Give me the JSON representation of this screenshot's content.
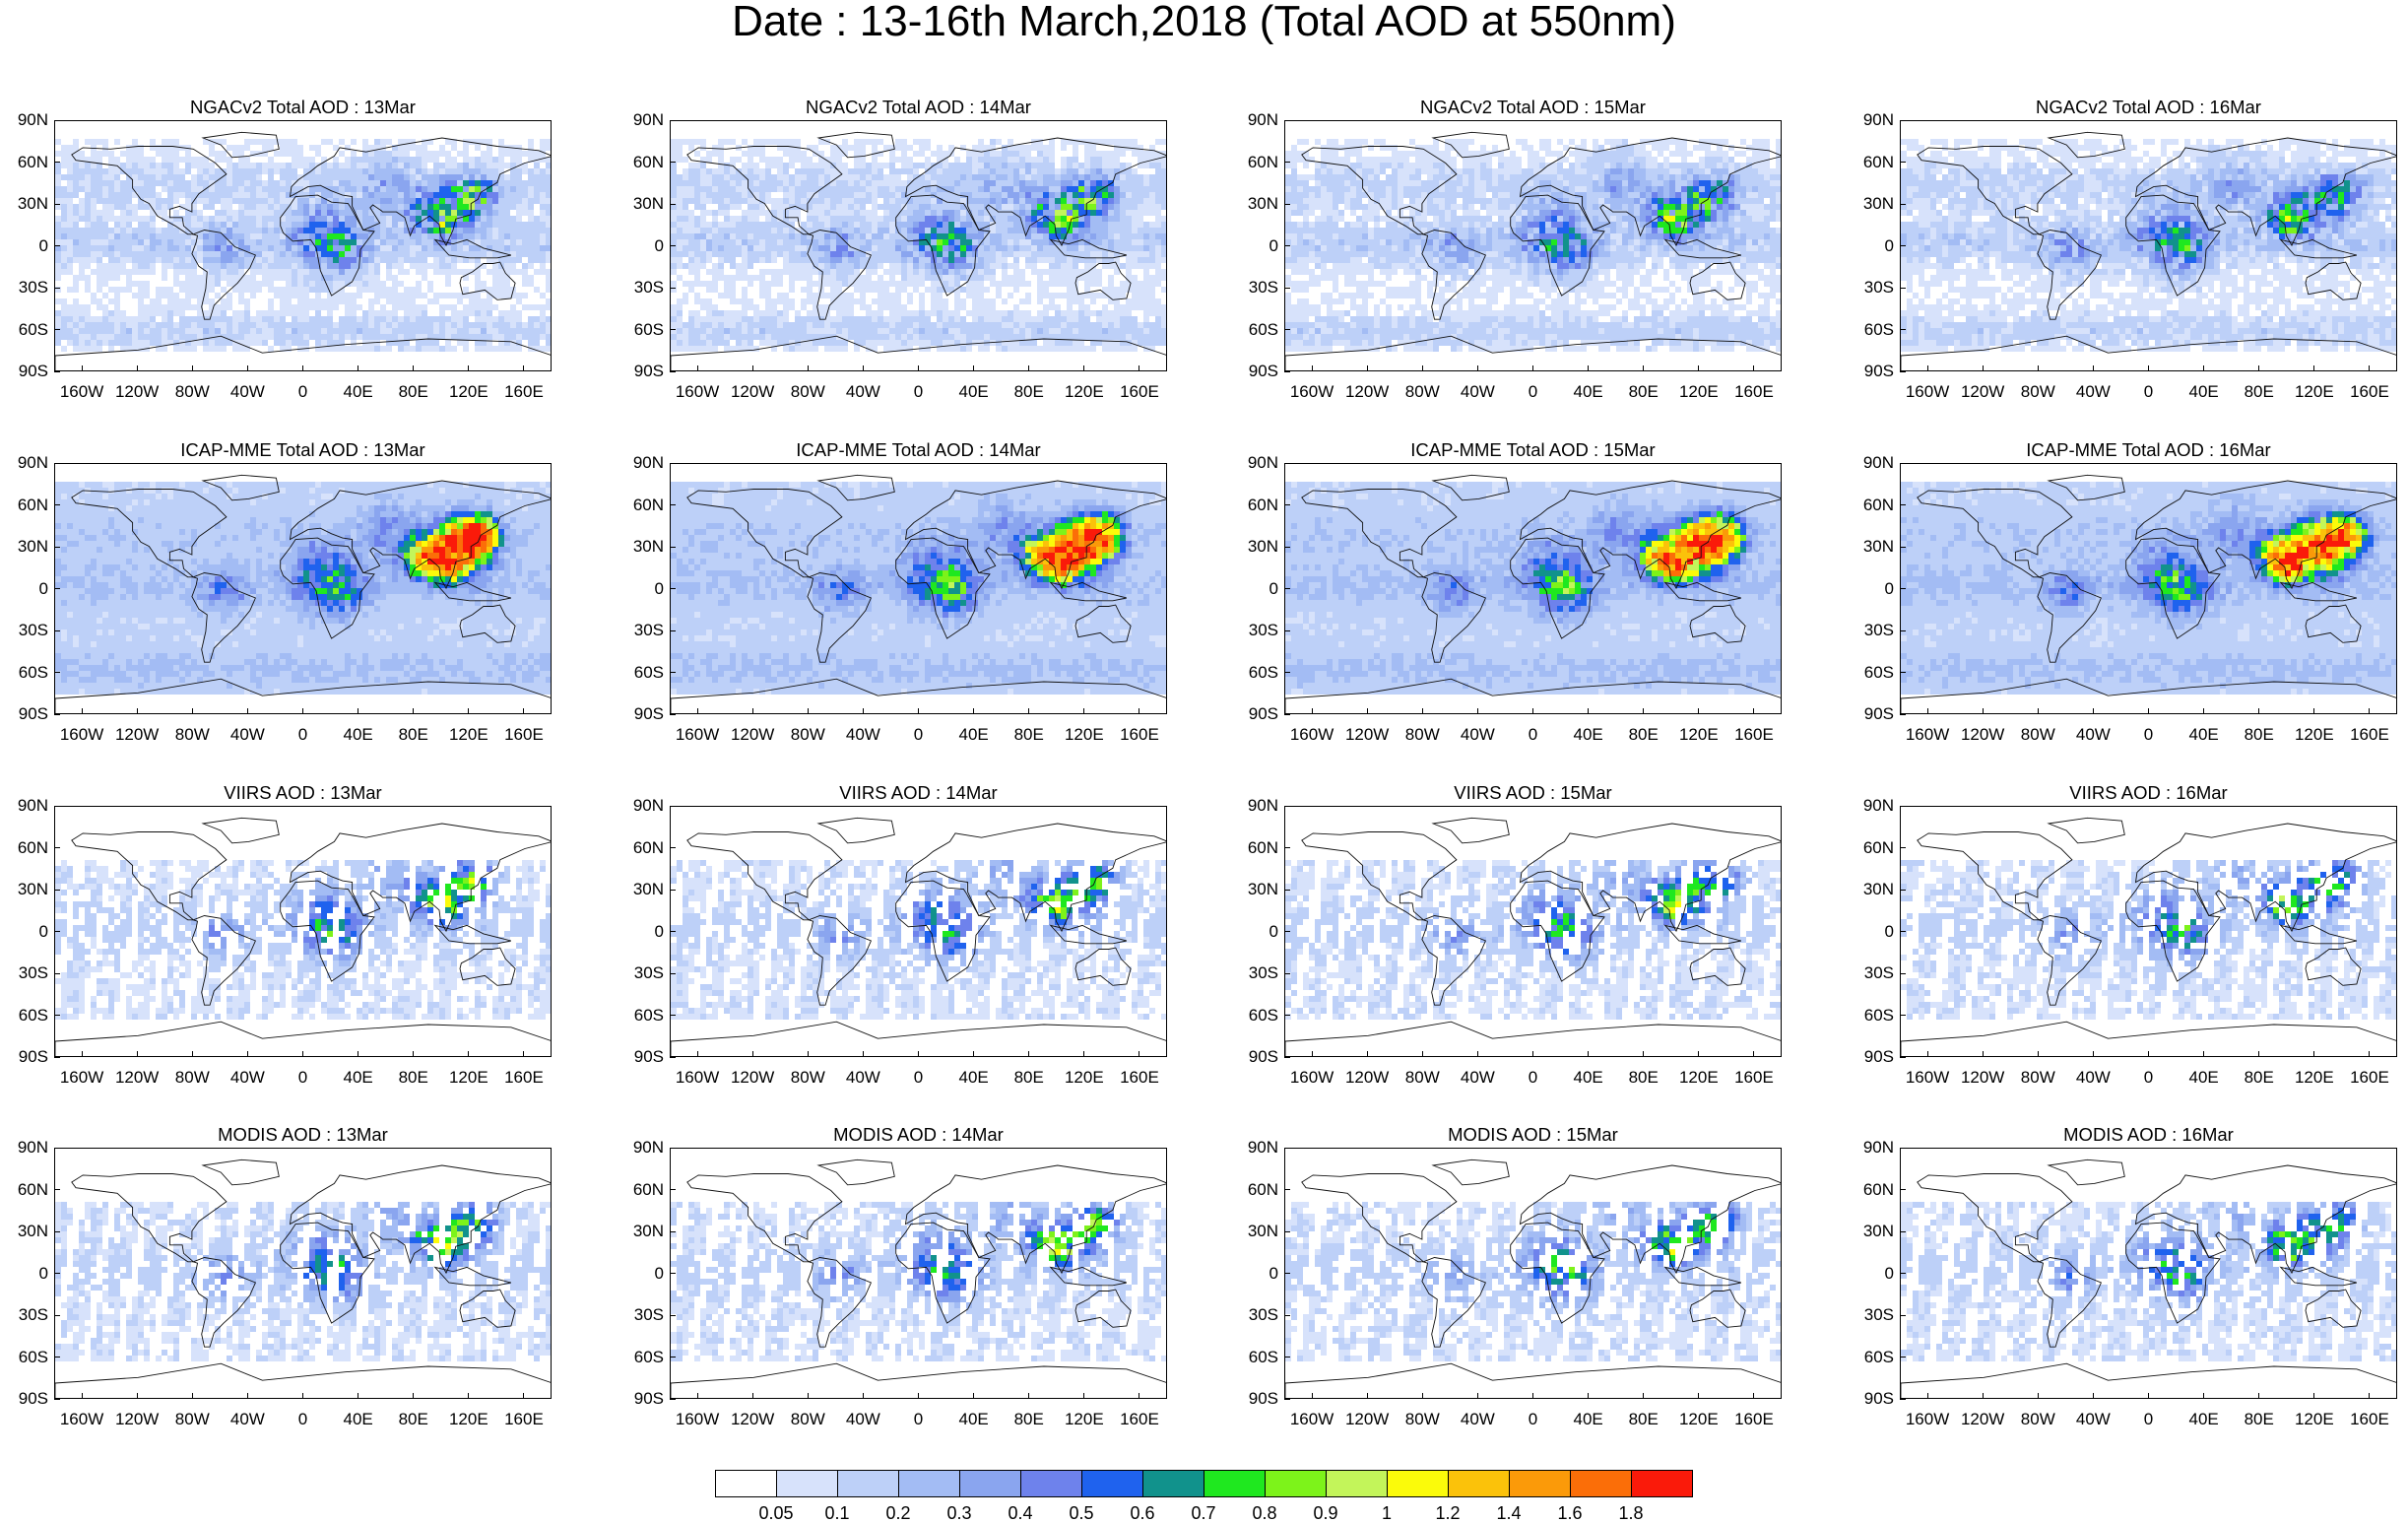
{
  "title": "Date : 13-16th March,2018 (Total AOD at 550nm)",
  "chart_data": {
    "type": "heatmap",
    "title": "Date : 13-16th March,2018 (Total AOD at 550nm)",
    "grid": false,
    "legend_placement": "bottom",
    "lat_ticks": [
      "90N",
      "60N",
      "30N",
      "0",
      "30S",
      "60S",
      "90S"
    ],
    "lon_ticks": [
      "160W",
      "120W",
      "80W",
      "40W",
      "0",
      "40E",
      "80E",
      "120E",
      "160E"
    ],
    "lon_range": [
      -180,
      180
    ],
    "lat_range": [
      -90,
      90
    ],
    "colorbar": {
      "levels": [
        "0.05",
        "0.1",
        "0.2",
        "0.3",
        "0.4",
        "0.5",
        "0.6",
        "0.7",
        "0.8",
        "0.9",
        "1",
        "1.2",
        "1.4",
        "1.6",
        "1.8"
      ],
      "colors": [
        "#ffffff",
        "#d7e2fb",
        "#bdd0f8",
        "#a3bcf4",
        "#8aa5ef",
        "#6e82ec",
        "#1f62ee",
        "#11928c",
        "#1fe81f",
        "#7df31a",
        "#c3f55a",
        "#fbfb0a",
        "#fbc20a",
        "#fb9a09",
        "#fb6e08",
        "#fa1a0a"
      ]
    },
    "panels": [
      {
        "title": "NGACv2 Total AOD : 13Mar",
        "model": "ngac",
        "day": 13
      },
      {
        "title": "NGACv2 Total AOD : 14Mar",
        "model": "ngac",
        "day": 14
      },
      {
        "title": "NGACv2 Total AOD : 15Mar",
        "model": "ngac",
        "day": 15
      },
      {
        "title": "NGACv2 Total AOD : 16Mar",
        "model": "ngac",
        "day": 16
      },
      {
        "title": "ICAP-MME Total AOD : 13Mar",
        "model": "icap",
        "day": 13
      },
      {
        "title": "ICAP-MME Total AOD : 14Mar",
        "model": "icap",
        "day": 14
      },
      {
        "title": "ICAP-MME Total AOD : 15Mar",
        "model": "icap",
        "day": 15
      },
      {
        "title": "ICAP-MME Total AOD : 16Mar",
        "model": "icap",
        "day": 16
      },
      {
        "title": "VIIRS AOD : 13Mar",
        "model": "viirs",
        "day": 13
      },
      {
        "title": "VIIRS AOD : 14Mar",
        "model": "viirs",
        "day": 14
      },
      {
        "title": "VIIRS AOD : 15Mar",
        "model": "viirs",
        "day": 15
      },
      {
        "title": "VIIRS AOD : 16Mar",
        "model": "viirs",
        "day": 16
      },
      {
        "title": "MODIS AOD : 13Mar",
        "model": "modis",
        "day": 13
      },
      {
        "title": "MODIS AOD : 14Mar",
        "model": "modis",
        "day": 14
      },
      {
        "title": "MODIS AOD : 15Mar",
        "model": "modis",
        "day": 15
      },
      {
        "title": "MODIS AOD : 16Mar",
        "model": "modis",
        "day": 16
      }
    ]
  }
}
